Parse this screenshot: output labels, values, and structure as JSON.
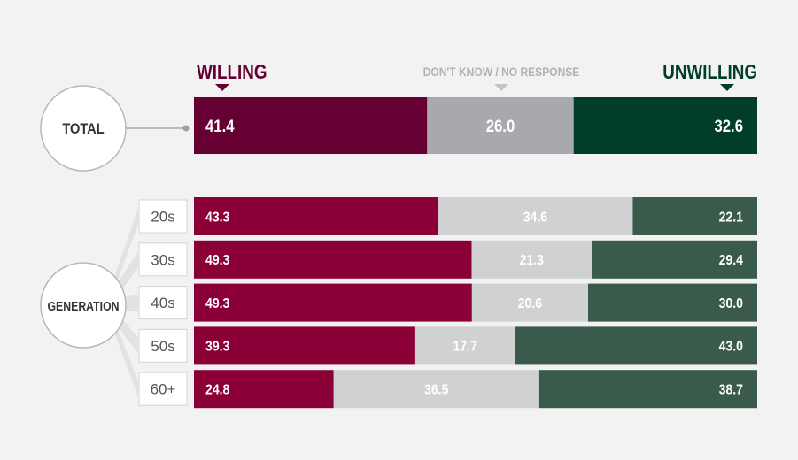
{
  "headers": {
    "willing": "WILLING",
    "dont_know": "DON'T KNOW / NO RESPONSE",
    "unwilling": "UNWILLING"
  },
  "circles": {
    "total": "TOTAL",
    "generation": "GENERATION"
  },
  "colors": {
    "willing_total": "#660033",
    "dont_know_total": "#a7a9ac",
    "unwilling_total": "#003d2b",
    "willing": "#8b0037",
    "dont_know": "#d0d1d3",
    "unwilling": "#3a5a4c",
    "header_willing": "#660033",
    "header_unwilling": "#003d2b"
  },
  "chart_data": {
    "type": "bar",
    "orientation": "horizontal",
    "stacked": true,
    "percent_stacked": true,
    "series_names": [
      "WILLING",
      "DON'T KNOW / NO RESPONSE",
      "UNWILLING"
    ],
    "total": {
      "label": "TOTAL",
      "values": [
        41.4,
        26.0,
        32.6
      ],
      "display": [
        "41.4",
        "26.0",
        "32.6"
      ]
    },
    "group_label": "GENERATION",
    "categories": [
      "20s",
      "30s",
      "40s",
      "50s",
      "60+"
    ],
    "series": [
      {
        "name": "WILLING",
        "values": [
          43.3,
          49.3,
          49.3,
          39.3,
          24.8
        ],
        "display": [
          "43.3",
          "49.3",
          "49.3",
          "39.3",
          "24.8"
        ]
      },
      {
        "name": "DON'T KNOW / NO RESPONSE",
        "values": [
          34.6,
          21.3,
          20.6,
          17.7,
          36.5
        ],
        "display": [
          "34.6",
          "21.3",
          "20.6",
          "17.7",
          "36.5"
        ]
      },
      {
        "name": "UNWILLING",
        "values": [
          22.1,
          29.4,
          30.0,
          43.0,
          38.7
        ],
        "display": [
          "22.1",
          "29.4",
          "30.0",
          "43.0",
          "38.7"
        ]
      }
    ]
  }
}
